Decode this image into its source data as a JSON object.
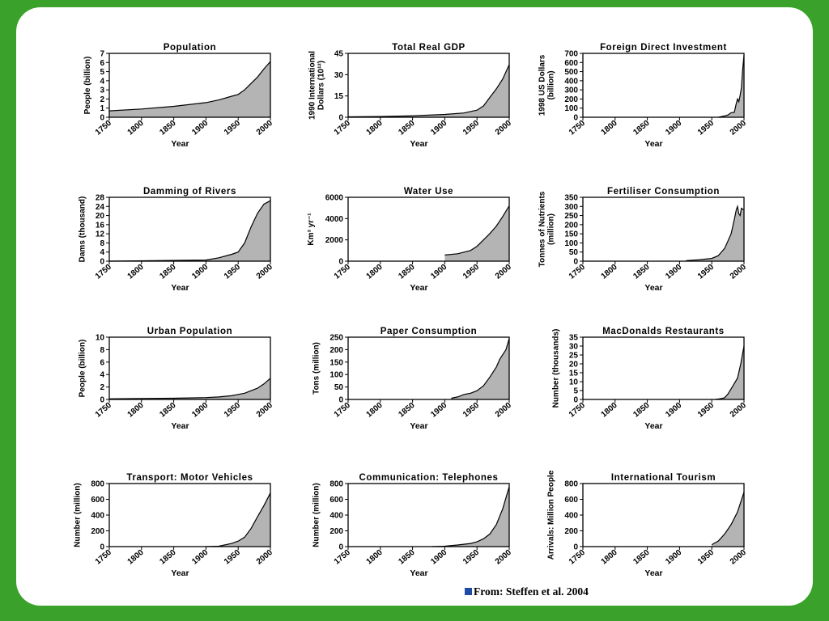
{
  "source_note": "From: Steffen et al. 2004",
  "colors": {
    "frame": "#3aa22a",
    "area_fill": "#b4b4b4",
    "bullet": "#1f4aa6"
  },
  "chart_data": [
    {
      "type": "area",
      "title": "Population",
      "xlabel": "Year",
      "ylabel": "People (billion)",
      "xlim": [
        1750,
        2000
      ],
      "ylim": [
        0,
        7
      ],
      "yticks": [
        0,
        1,
        2,
        3,
        4,
        5,
        6,
        7
      ],
      "xticks": [
        1750,
        1800,
        1850,
        1900,
        1950,
        2000
      ],
      "x": [
        1750,
        1800,
        1850,
        1900,
        1920,
        1940,
        1950,
        1960,
        1970,
        1980,
        1990,
        2000
      ],
      "y": [
        0.7,
        0.9,
        1.2,
        1.6,
        1.9,
        2.3,
        2.5,
        3.0,
        3.7,
        4.4,
        5.3,
        6.1
      ]
    },
    {
      "type": "area",
      "title": "Total Real GDP",
      "xlabel": "Year",
      "ylabel": [
        "1990 International",
        "Dollars (10¹²)"
      ],
      "xlim": [
        1750,
        2000
      ],
      "ylim": [
        0,
        45
      ],
      "yticks": [
        0,
        15,
        30,
        45
      ],
      "xticks": [
        1750,
        1800,
        1850,
        1900,
        1950,
        2000
      ],
      "x": [
        1750,
        1800,
        1850,
        1900,
        1930,
        1950,
        1960,
        1970,
        1980,
        1990,
        2000
      ],
      "y": [
        0.3,
        0.5,
        1,
        2,
        3,
        5,
        8,
        14,
        20,
        27,
        37
      ]
    },
    {
      "type": "area",
      "title": "Foreign Direct Investment",
      "xlabel": "Year",
      "ylabel": [
        "1998 US Dollars",
        "(billion)"
      ],
      "xlim": [
        1750,
        2000
      ],
      "ylim": [
        0,
        700
      ],
      "yticks": [
        0,
        100,
        200,
        300,
        400,
        500,
        600,
        700
      ],
      "xticks": [
        1750,
        1800,
        1850,
        1900,
        1950,
        2000
      ],
      "x": [
        1960,
        1970,
        1975,
        1980,
        1985,
        1988,
        1990,
        1992,
        1994,
        1996,
        1998,
        2000
      ],
      "y": [
        0,
        15,
        25,
        50,
        55,
        150,
        200,
        170,
        240,
        320,
        530,
        680
      ]
    },
    {
      "type": "area",
      "title": "Damming of Rivers",
      "xlabel": "Year",
      "ylabel": "Dams (thousand)",
      "xlim": [
        1750,
        2000
      ],
      "ylim": [
        0,
        28
      ],
      "yticks": [
        0,
        4,
        8,
        12,
        16,
        20,
        24,
        28
      ],
      "xticks": [
        1750,
        1800,
        1850,
        1900,
        1950,
        2000
      ],
      "x": [
        1750,
        1900,
        1920,
        1940,
        1950,
        1960,
        1970,
        1980,
        1990,
        2000
      ],
      "y": [
        0,
        0.5,
        1.5,
        3,
        4,
        8,
        15,
        21,
        25,
        26.5
      ]
    },
    {
      "type": "area",
      "title": "Water Use",
      "xlabel": "Year",
      "ylabel": "Km³ yr⁻¹",
      "xlim": [
        1750,
        2000
      ],
      "ylim": [
        0,
        6000
      ],
      "yticks": [
        0,
        2000,
        4000,
        6000
      ],
      "xticks": [
        1750,
        1800,
        1850,
        1900,
        1950,
        2000
      ],
      "x": [
        1900,
        1920,
        1940,
        1950,
        1960,
        1970,
        1980,
        1990,
        2000
      ],
      "y": [
        580,
        700,
        1000,
        1400,
        2000,
        2600,
        3300,
        4200,
        5200
      ]
    },
    {
      "type": "area",
      "title": "Fertiliser Consumption",
      "xlabel": "Year",
      "ylabel": [
        "Tonnes of Nutrients",
        "(million)"
      ],
      "xlim": [
        1750,
        2000
      ],
      "ylim": [
        0,
        350
      ],
      "yticks": [
        0,
        50,
        100,
        150,
        200,
        250,
        300,
        350
      ],
      "xticks": [
        1750,
        1800,
        1850,
        1900,
        1950,
        2000
      ],
      "x": [
        1910,
        1930,
        1950,
        1960,
        1970,
        1980,
        1985,
        1988,
        1990,
        1992,
        1994,
        1996,
        2000
      ],
      "y": [
        3,
        8,
        15,
        30,
        70,
        150,
        230,
        280,
        300,
        260,
        250,
        290,
        280
      ]
    },
    {
      "type": "area",
      "title": "Urban Population",
      "xlabel": "Year",
      "ylabel": "People (billion)",
      "xlim": [
        1750,
        2000
      ],
      "ylim": [
        0,
        10
      ],
      "yticks": [
        0,
        2,
        4,
        6,
        8,
        10
      ],
      "xticks": [
        1750,
        1800,
        1850,
        1900,
        1950,
        2000
      ],
      "x": [
        1750,
        1800,
        1850,
        1900,
        1920,
        1940,
        1950,
        1960,
        1970,
        1980,
        1990,
        2000
      ],
      "y": [
        0.1,
        0.15,
        0.2,
        0.3,
        0.4,
        0.6,
        0.8,
        1.0,
        1.4,
        1.8,
        2.5,
        3.4
      ]
    },
    {
      "type": "area",
      "title": "Paper Consumption",
      "xlabel": "Year",
      "ylabel": "Tons (million)",
      "xlim": [
        1750,
        2000
      ],
      "ylim": [
        0,
        250
      ],
      "yticks": [
        0,
        50,
        100,
        150,
        200,
        250
      ],
      "xticks": [
        1750,
        1800,
        1850,
        1900,
        1950,
        2000
      ],
      "x": [
        1910,
        1920,
        1930,
        1940,
        1950,
        1960,
        1970,
        1975,
        1980,
        1985,
        1990,
        1995,
        2000
      ],
      "y": [
        5,
        10,
        20,
        25,
        35,
        55,
        90,
        110,
        130,
        160,
        180,
        200,
        245
      ]
    },
    {
      "type": "area",
      "title": "MacDonalds Restaurants",
      "xlabel": "Year",
      "ylabel": "Number (thousands)",
      "xlim": [
        1750,
        2000
      ],
      "ylim": [
        0,
        35
      ],
      "yticks": [
        0,
        5,
        10,
        15,
        20,
        25,
        30,
        35
      ],
      "xticks": [
        1750,
        1800,
        1850,
        1900,
        1950,
        2000
      ],
      "x": [
        1955,
        1965,
        1970,
        1975,
        1980,
        1985,
        1990,
        1995,
        2000
      ],
      "y": [
        0,
        0.5,
        1,
        3,
        6,
        9,
        12,
        20,
        30
      ]
    },
    {
      "type": "area",
      "title": "Transport: Motor Vehicles",
      "xlabel": "Year",
      "ylabel": "Number (million)",
      "xlim": [
        1750,
        2000
      ],
      "ylim": [
        0,
        800
      ],
      "yticks": [
        0,
        200,
        400,
        600,
        800
      ],
      "xticks": [
        1750,
        1800,
        1850,
        1900,
        1950,
        2000
      ],
      "x": [
        1900,
        1920,
        1940,
        1950,
        1960,
        1970,
        1980,
        1990,
        2000
      ],
      "y": [
        0,
        5,
        40,
        70,
        120,
        230,
        380,
        520,
        680
      ]
    },
    {
      "type": "area",
      "title": "Communication: Telephones",
      "xlabel": "Year",
      "ylabel": "Number (million)",
      "xlim": [
        1750,
        2000
      ],
      "ylim": [
        0,
        800
      ],
      "yticks": [
        0,
        200,
        400,
        600,
        800
      ],
      "xticks": [
        1750,
        1800,
        1850,
        1900,
        1950,
        2000
      ],
      "x": [
        1880,
        1900,
        1920,
        1940,
        1950,
        1960,
        1970,
        1980,
        1990,
        1995,
        2000
      ],
      "y": [
        0,
        5,
        20,
        40,
        60,
        100,
        160,
        280,
        480,
        620,
        760
      ]
    },
    {
      "type": "area",
      "title": "International Tourism",
      "xlabel": "Year",
      "ylabel": "Arrivals: Million People",
      "xlim": [
        1750,
        2000
      ],
      "ylim": [
        0,
        800
      ],
      "yticks": [
        0,
        200,
        400,
        600,
        800
      ],
      "xticks": [
        1750,
        1800,
        1850,
        1900,
        1950,
        2000
      ],
      "x": [
        1950,
        1960,
        1970,
        1980,
        1990,
        2000
      ],
      "y": [
        25,
        70,
        160,
        280,
        440,
        690
      ]
    }
  ]
}
